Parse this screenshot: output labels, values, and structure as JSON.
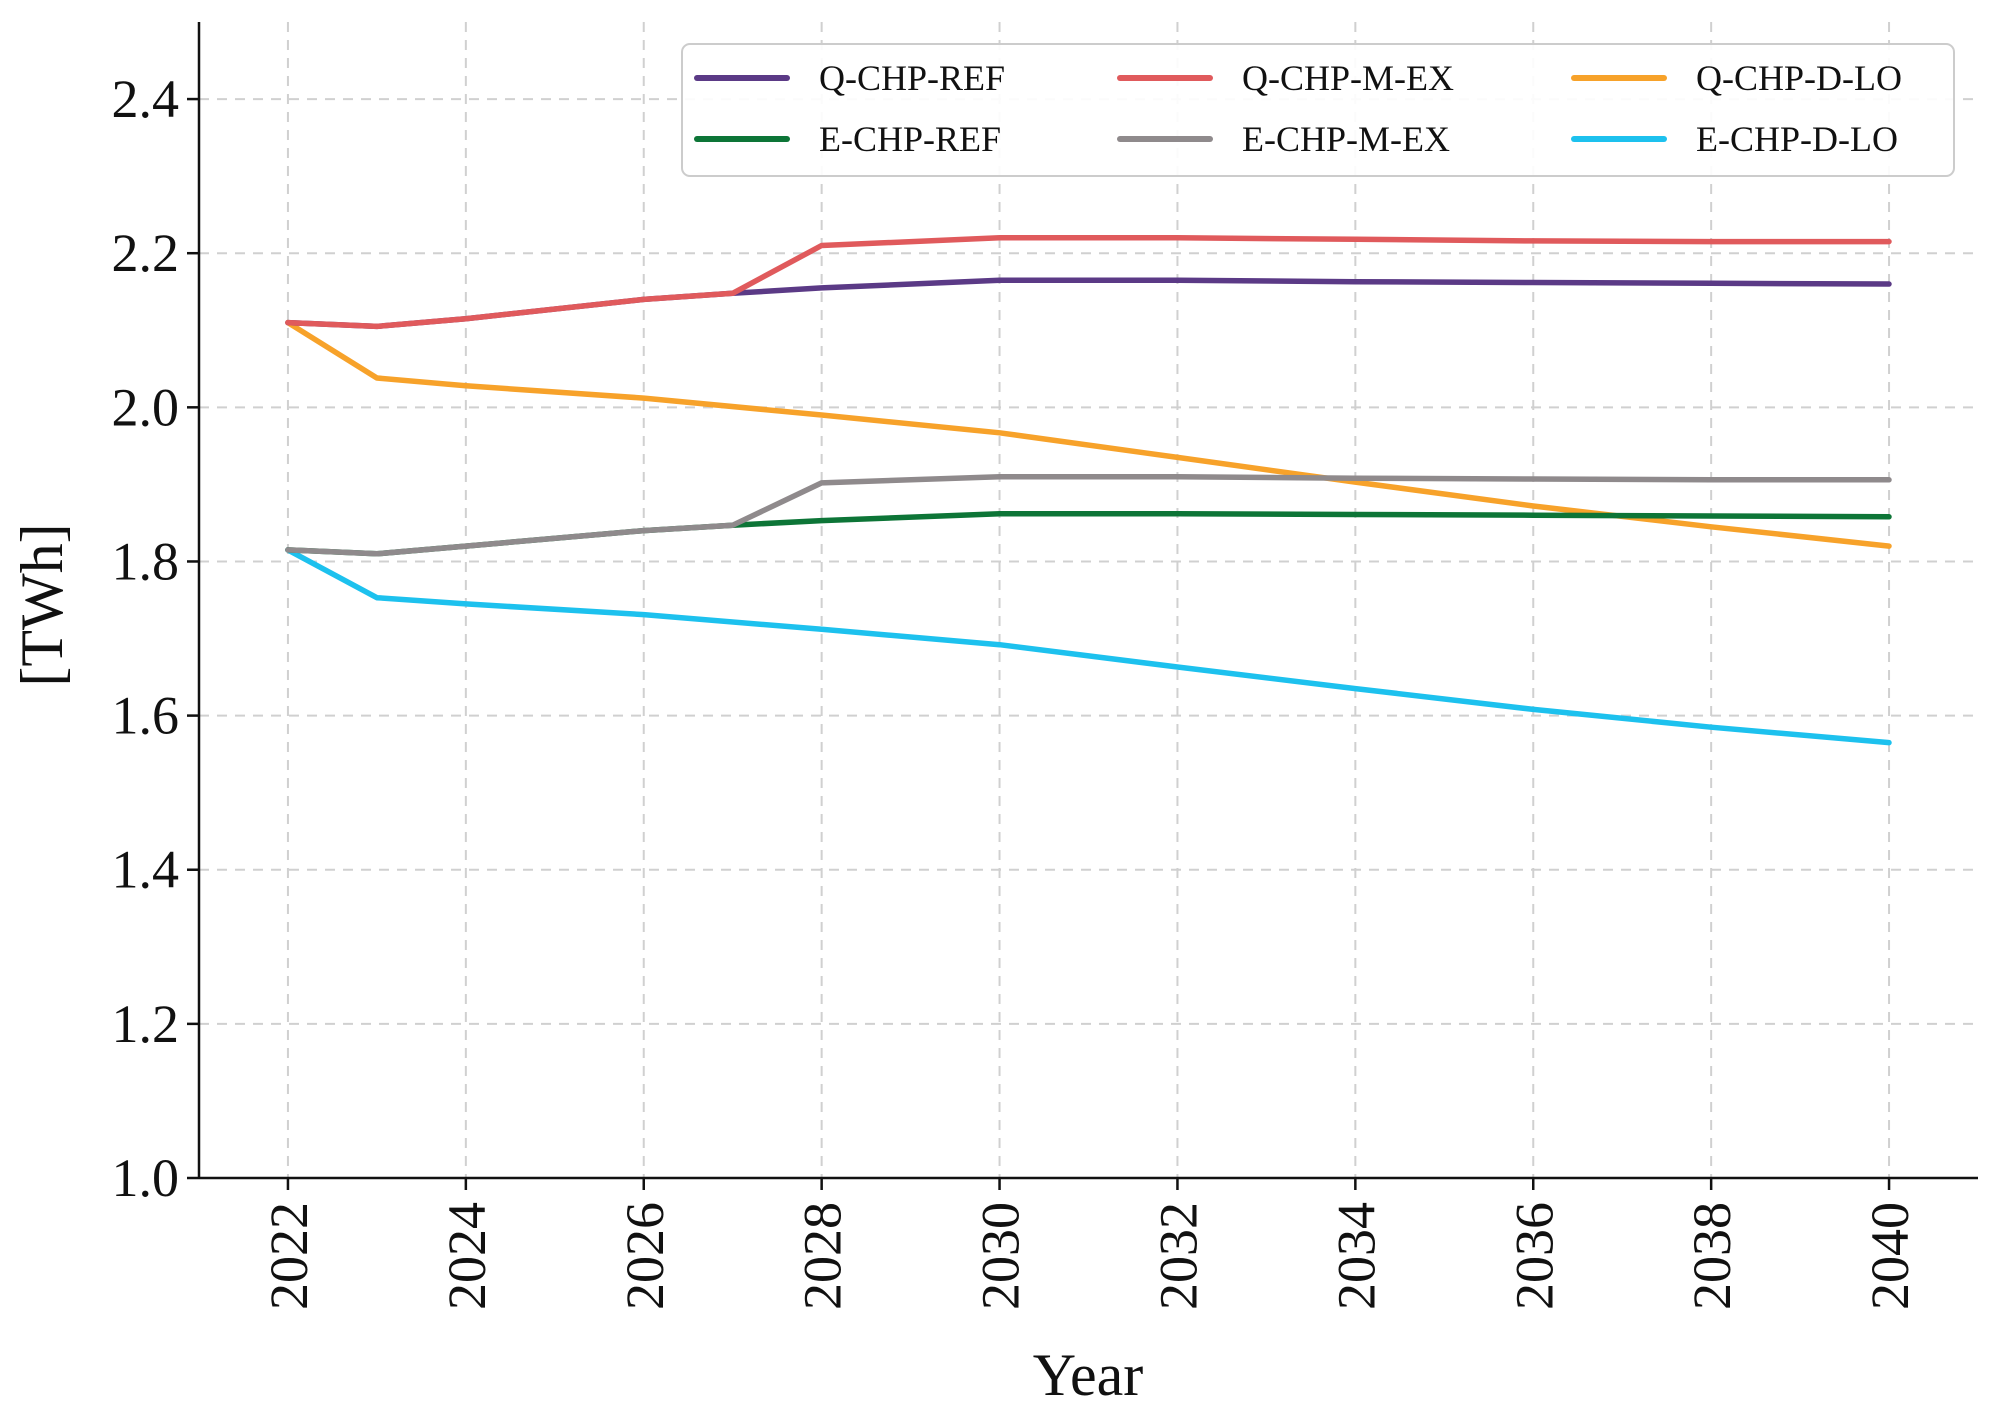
{
  "chart_data": {
    "type": "line",
    "title": "",
    "xlabel": "Year",
    "ylabel": "[TWh]",
    "xlim": [
      2021,
      2041
    ],
    "ylim": [
      1.0,
      2.5
    ],
    "xticks": [
      "2022",
      "2024",
      "2026",
      "2028",
      "2030",
      "2032",
      "2034",
      "2036",
      "2038",
      "2040"
    ],
    "yticks": [
      "1.0",
      "1.2",
      "1.4",
      "1.6",
      "1.8",
      "2.0",
      "2.2",
      "2.4"
    ],
    "grid": true,
    "legend_position": "top-right",
    "series": [
      {
        "name": "Q-CHP-REF",
        "color": "#5b3a86",
        "x": [
          2022,
          2023,
          2024,
          2026,
          2027,
          2028,
          2030,
          2032,
          2034,
          2036,
          2038,
          2040
        ],
        "values": [
          2.11,
          2.105,
          2.115,
          2.14,
          2.148,
          2.155,
          2.165,
          2.165,
          2.163,
          2.162,
          2.161,
          2.16
        ]
      },
      {
        "name": "Q-CHP-M-EX",
        "color": "#e05a5c",
        "x": [
          2022,
          2023,
          2024,
          2026,
          2027,
          2028,
          2030,
          2032,
          2034,
          2036,
          2038,
          2040
        ],
        "values": [
          2.11,
          2.105,
          2.115,
          2.14,
          2.148,
          2.21,
          2.22,
          2.22,
          2.218,
          2.216,
          2.215,
          2.215
        ]
      },
      {
        "name": "Q-CHP-D-LO",
        "color": "#f7a22a",
        "x": [
          2022,
          2023,
          2024,
          2026,
          2028,
          2030,
          2032,
          2034,
          2036,
          2038,
          2040
        ],
        "values": [
          2.11,
          2.038,
          2.028,
          2.012,
          1.99,
          1.967,
          1.935,
          1.903,
          1.872,
          1.845,
          1.82
        ]
      },
      {
        "name": "E-CHP-REF",
        "color": "#0d7537",
        "x": [
          2022,
          2023,
          2024,
          2026,
          2027,
          2028,
          2030,
          2032,
          2034,
          2036,
          2038,
          2040
        ],
        "values": [
          1.815,
          1.81,
          1.82,
          1.84,
          1.847,
          1.853,
          1.862,
          1.862,
          1.861,
          1.86,
          1.859,
          1.858
        ]
      },
      {
        "name": "E-CHP-M-EX",
        "color": "#8f8a8c",
        "x": [
          2022,
          2023,
          2024,
          2026,
          2027,
          2028,
          2030,
          2032,
          2034,
          2036,
          2038,
          2040
        ],
        "values": [
          1.815,
          1.81,
          1.82,
          1.84,
          1.847,
          1.902,
          1.91,
          1.91,
          1.908,
          1.907,
          1.906,
          1.906
        ]
      },
      {
        "name": "E-CHP-D-LO",
        "color": "#1dc1ee",
        "x": [
          2022,
          2023,
          2024,
          2026,
          2028,
          2030,
          2032,
          2034,
          2036,
          2038,
          2040
        ],
        "values": [
          1.815,
          1.753,
          1.745,
          1.731,
          1.712,
          1.692,
          1.663,
          1.635,
          1.608,
          1.585,
          1.565
        ]
      }
    ],
    "legend_order": [
      "Q-CHP-REF",
      "Q-CHP-M-EX",
      "Q-CHP-D-LO",
      "E-CHP-REF",
      "E-CHP-M-EX",
      "E-CHP-D-LO"
    ]
  }
}
